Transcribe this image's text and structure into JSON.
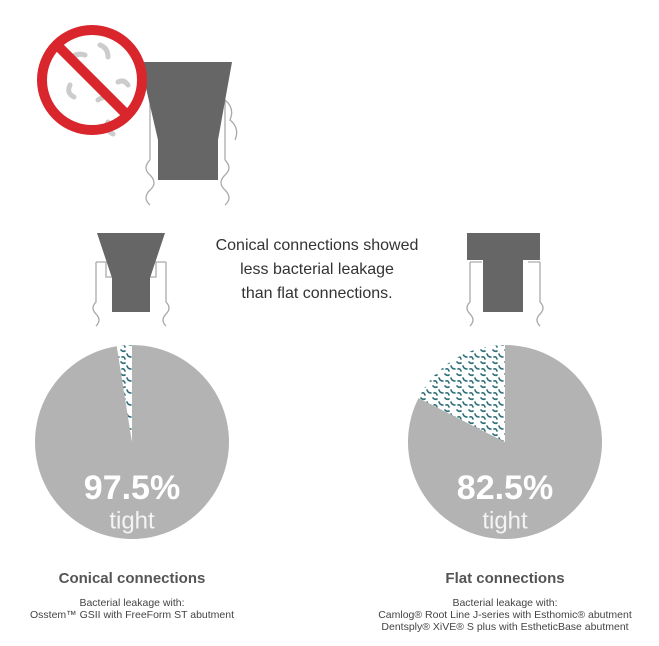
{
  "caption": [
    "Conical connections showed",
    "less bacterial leakage",
    "than flat connections."
  ],
  "chart_data": [
    {
      "type": "pie",
      "title": "Conical connections",
      "notes": [
        "Bacterial leakage with:",
        "Osstem™ GSII with FreeForm ST abutment"
      ],
      "categories": [
        "tight",
        null
      ],
      "values": [
        97.5,
        2.5
      ],
      "value_labels": [
        "97.5%",
        null
      ],
      "color": "#b3b3b3"
    },
    {
      "type": "pie",
      "title": "Flat connections",
      "notes": [
        "Bacterial leakage with:",
        "Camlog® Root Line J-series with Esthomic® abutment",
        "Dentsply® XiVE® S plus with EstheticBase abutment"
      ],
      "categories": [
        "tight",
        null
      ],
      "values": [
        82.5,
        17.5
      ],
      "value_labels": [
        "82.5%",
        null
      ],
      "color": "#b3b3b3"
    }
  ]
}
